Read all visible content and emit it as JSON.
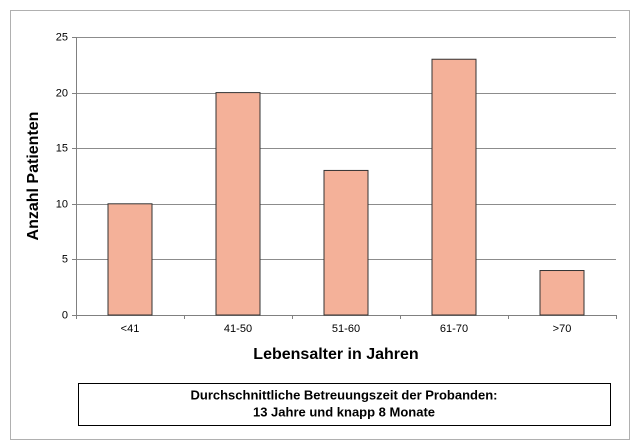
{
  "chart_data": {
    "type": "bar",
    "categories": [
      "<41",
      "41-50",
      "51-60",
      "61-70",
      ">70"
    ],
    "values": [
      10,
      20,
      13,
      23,
      4
    ],
    "color": "#f4b199",
    "ylim": [
      0,
      25
    ],
    "yticks": [
      0,
      5,
      10,
      15,
      20,
      25
    ],
    "grid": true,
    "x_label": "Lebensalter in Jahren",
    "y_label": "Anzahl Patienten",
    "annotation": [
      "Durchschnittliche Betreuungszeit der Probanden:",
      "13 Jahre und knapp 8 Monate"
    ]
  }
}
